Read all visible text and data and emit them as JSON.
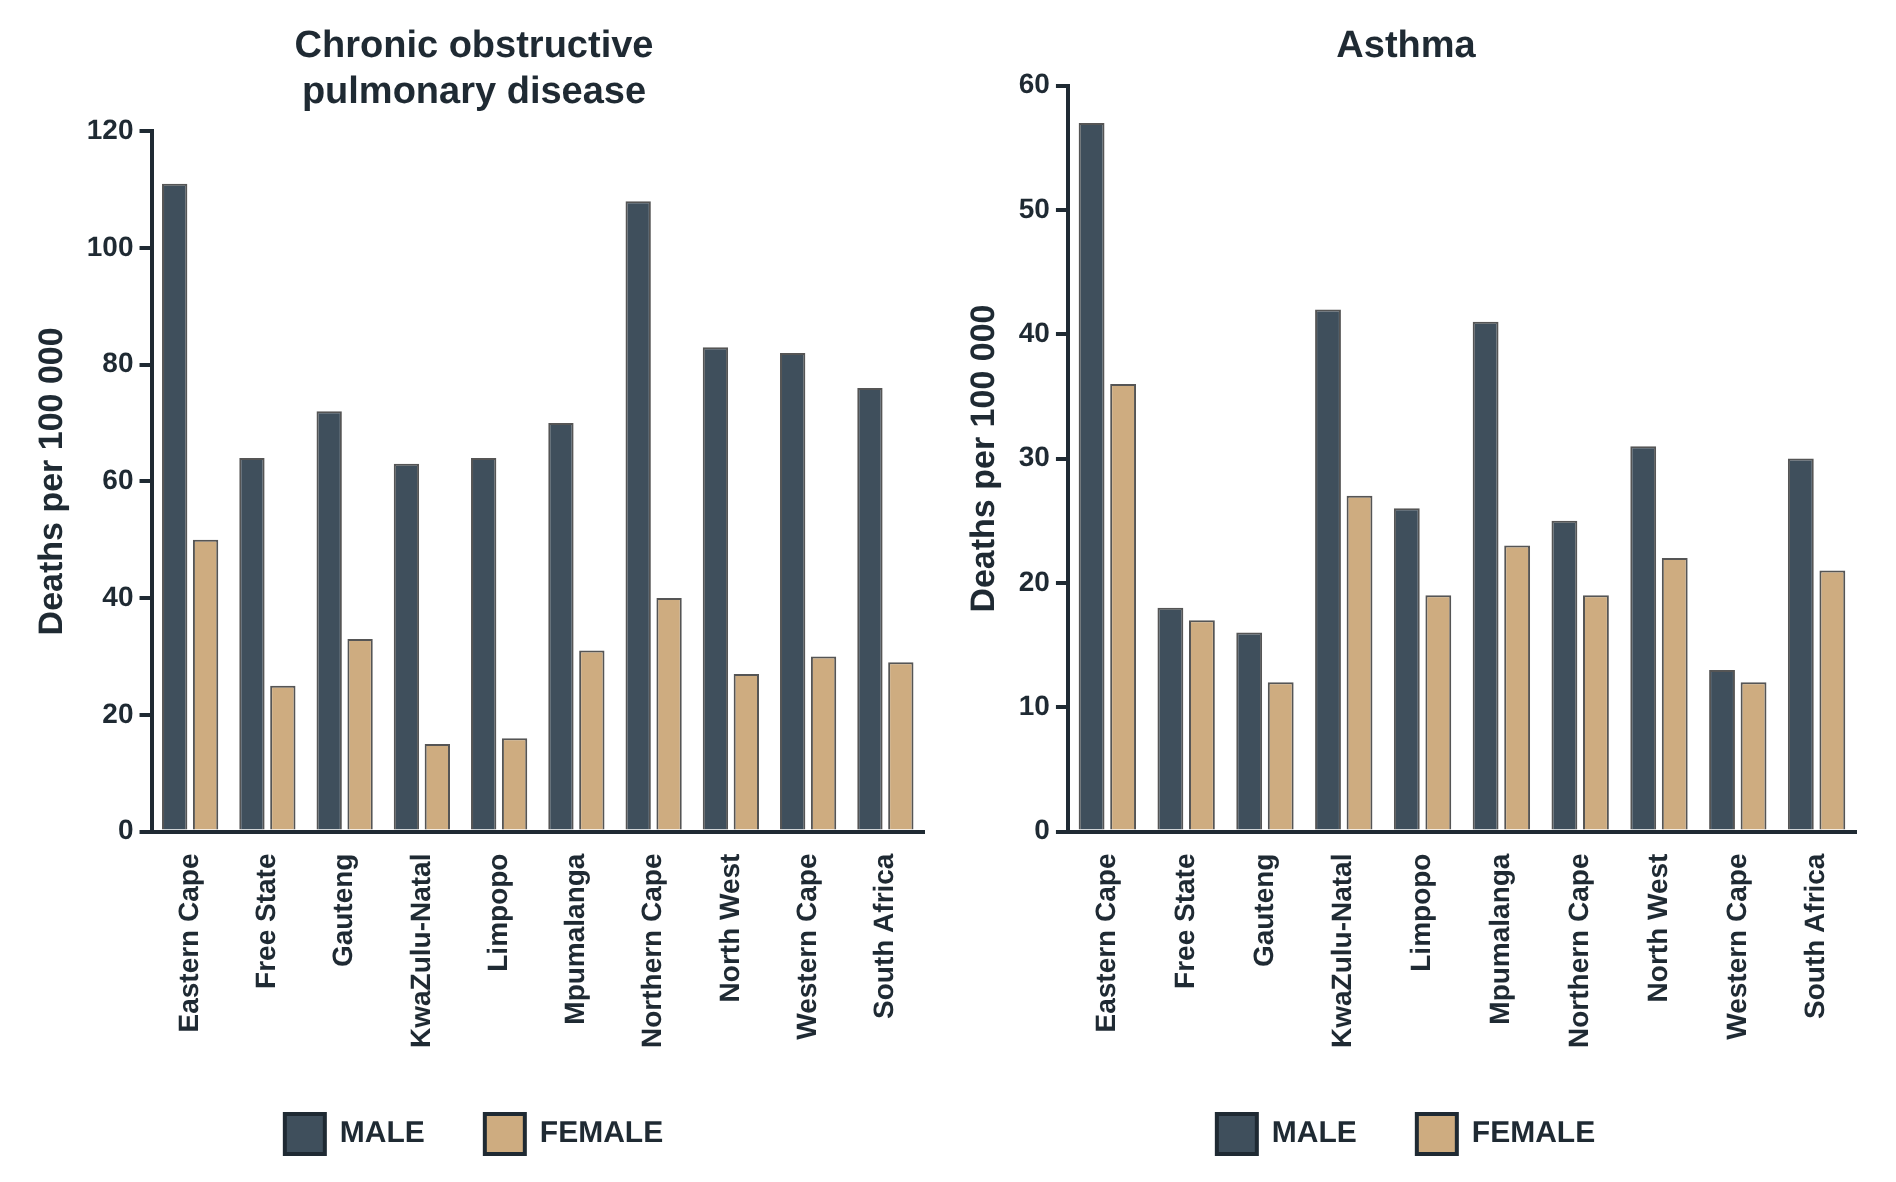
{
  "chart_data": [
    {
      "type": "bar",
      "title": "Chronic obstructive pulmonary disease",
      "ylabel": "Deaths per 100 000",
      "categories": [
        "Eastern Cape",
        "Free State",
        "Gauteng",
        "KwaZulu-Natal",
        "Limpopo",
        "Mpumalanga",
        "Northern Cape",
        "North West",
        "Western Cape",
        "South Africa"
      ],
      "series": [
        {
          "name": "MALE",
          "color": "#3f4f5c",
          "values": [
            111,
            64,
            72,
            63,
            64,
            70,
            108,
            83,
            82,
            76
          ]
        },
        {
          "name": "FEMALE",
          "color": "#ceac80",
          "values": [
            50,
            25,
            33,
            15,
            16,
            31,
            40,
            27,
            30,
            29
          ]
        }
      ],
      "ylim": [
        0,
        120
      ],
      "yticks": [
        0,
        20,
        40,
        60,
        80,
        100,
        120
      ],
      "grid": false,
      "legend": "bottom"
    },
    {
      "type": "bar",
      "title": "Asthma",
      "ylabel": "Deaths per 100 000",
      "categories": [
        "Eastern Cape",
        "Free State",
        "Gauteng",
        "KwaZulu-Natal",
        "Limpopo",
        "Mpumalanga",
        "Northern Cape",
        "North West",
        "Western Cape",
        "South Africa"
      ],
      "series": [
        {
          "name": "MALE",
          "color": "#3f4f5c",
          "values": [
            57,
            18,
            16,
            42,
            26,
            41,
            25,
            31,
            13,
            30
          ]
        },
        {
          "name": "FEMALE",
          "color": "#ceac80",
          "values": [
            36,
            17,
            12,
            27,
            19,
            23,
            19,
            22,
            12,
            21
          ]
        }
      ],
      "ylim": [
        0,
        60
      ],
      "yticks": [
        0,
        10,
        20,
        30,
        40,
        50,
        60
      ],
      "grid": false,
      "legend": "bottom"
    }
  ]
}
